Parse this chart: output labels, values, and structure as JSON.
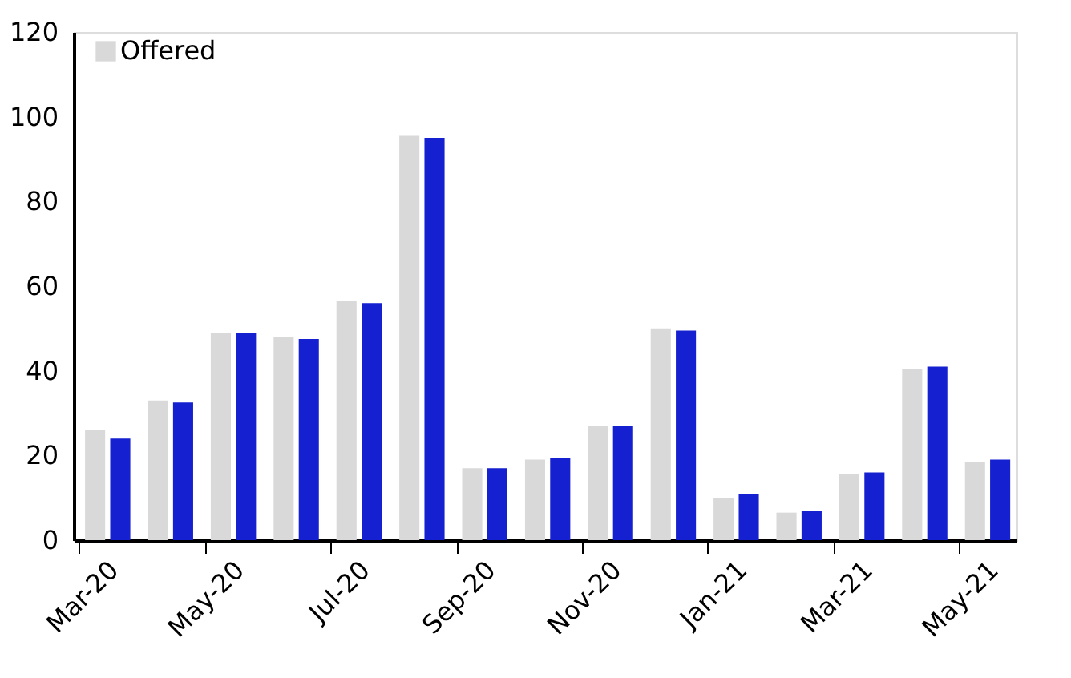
{
  "chart_data": {
    "type": "bar",
    "categories": [
      "Mar-20",
      null,
      "May-20",
      null,
      "Jul-20",
      null,
      "Sep-20",
      null,
      "Nov-20",
      null,
      "Jan-21",
      null,
      "Mar-21",
      null,
      "May-21"
    ],
    "series": [
      {
        "name": "Offered",
        "color": "#d9d9d9",
        "values": [
          26,
          33,
          49,
          48,
          56.5,
          95.5,
          17,
          19,
          27,
          50,
          10,
          6.5,
          15.5,
          40.5,
          18.5
        ]
      },
      {
        "color": "#1520d0",
        "values": [
          24,
          32.5,
          49,
          47.5,
          56,
          95,
          17,
          19.5,
          27,
          49.5,
          11,
          7,
          16,
          41,
          19
        ]
      }
    ],
    "ylim": [
      0,
      120
    ],
    "yticks": [
      0,
      20,
      40,
      60,
      80,
      100,
      120
    ],
    "grid": false,
    "legend": "top left"
  }
}
